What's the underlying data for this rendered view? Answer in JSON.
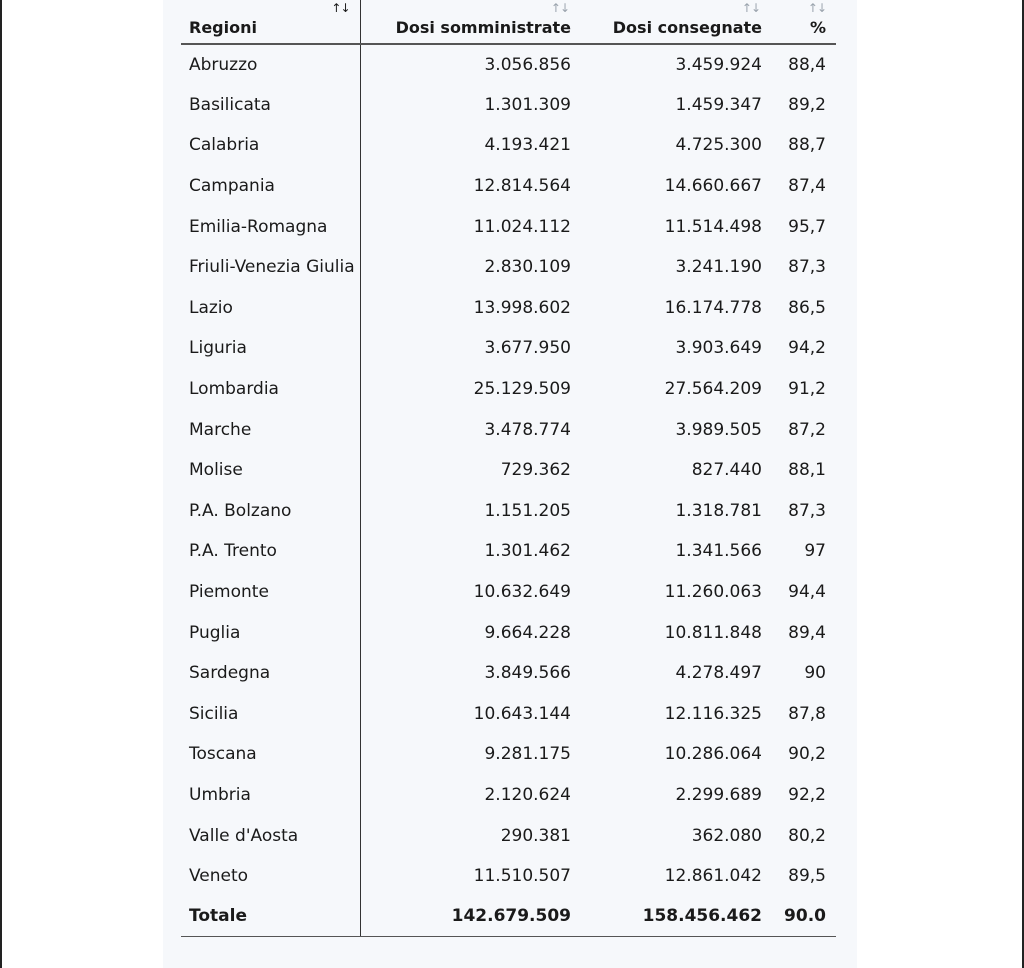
{
  "table": {
    "headers": {
      "region": "Regioni",
      "administered": "Dosi somministrate",
      "delivered": "Dosi consegnate",
      "percent": "%"
    },
    "sort_icon": "↑↓",
    "rows": [
      {
        "region": "Abruzzo",
        "administered": "3.056.856",
        "delivered": "3.459.924",
        "percent": "88,4"
      },
      {
        "region": "Basilicata",
        "administered": "1.301.309",
        "delivered": "1.459.347",
        "percent": "89,2"
      },
      {
        "region": "Calabria",
        "administered": "4.193.421",
        "delivered": "4.725.300",
        "percent": "88,7"
      },
      {
        "region": "Campania",
        "administered": "12.814.564",
        "delivered": "14.660.667",
        "percent": "87,4"
      },
      {
        "region": "Emilia-Romagna",
        "administered": "11.024.112",
        "delivered": "11.514.498",
        "percent": "95,7"
      },
      {
        "region": "Friuli-Venezia Giulia",
        "administered": "2.830.109",
        "delivered": "3.241.190",
        "percent": "87,3"
      },
      {
        "region": "Lazio",
        "administered": "13.998.602",
        "delivered": "16.174.778",
        "percent": "86,5"
      },
      {
        "region": "Liguria",
        "administered": "3.677.950",
        "delivered": "3.903.649",
        "percent": "94,2"
      },
      {
        "region": "Lombardia",
        "administered": "25.129.509",
        "delivered": "27.564.209",
        "percent": "91,2"
      },
      {
        "region": "Marche",
        "administered": "3.478.774",
        "delivered": "3.989.505",
        "percent": "87,2"
      },
      {
        "region": "Molise",
        "administered": "729.362",
        "delivered": "827.440",
        "percent": "88,1"
      },
      {
        "region": "P.A. Bolzano",
        "administered": "1.151.205",
        "delivered": "1.318.781",
        "percent": "87,3"
      },
      {
        "region": "P.A. Trento",
        "administered": "1.301.462",
        "delivered": "1.341.566",
        "percent": "97"
      },
      {
        "region": "Piemonte",
        "administered": "10.632.649",
        "delivered": "11.260.063",
        "percent": "94,4"
      },
      {
        "region": "Puglia",
        "administered": "9.664.228",
        "delivered": "10.811.848",
        "percent": "89,4"
      },
      {
        "region": "Sardegna",
        "administered": "3.849.566",
        "delivered": "4.278.497",
        "percent": "90"
      },
      {
        "region": "Sicilia",
        "administered": "10.643.144",
        "delivered": "12.116.325",
        "percent": "87,8"
      },
      {
        "region": "Toscana",
        "administered": "9.281.175",
        "delivered": "10.286.064",
        "percent": "90,2"
      },
      {
        "region": "Umbria",
        "administered": "2.120.624",
        "delivered": "2.299.689",
        "percent": "92,2"
      },
      {
        "region": "Valle d'Aosta",
        "administered": "290.381",
        "delivered": "362.080",
        "percent": "80,2"
      },
      {
        "region": "Veneto",
        "administered": "11.510.507",
        "delivered": "12.861.042",
        "percent": "89,5"
      }
    ],
    "total": {
      "region": "Totale",
      "administered": "142.679.509",
      "delivered": "158.456.462",
      "percent": "90.0"
    }
  }
}
